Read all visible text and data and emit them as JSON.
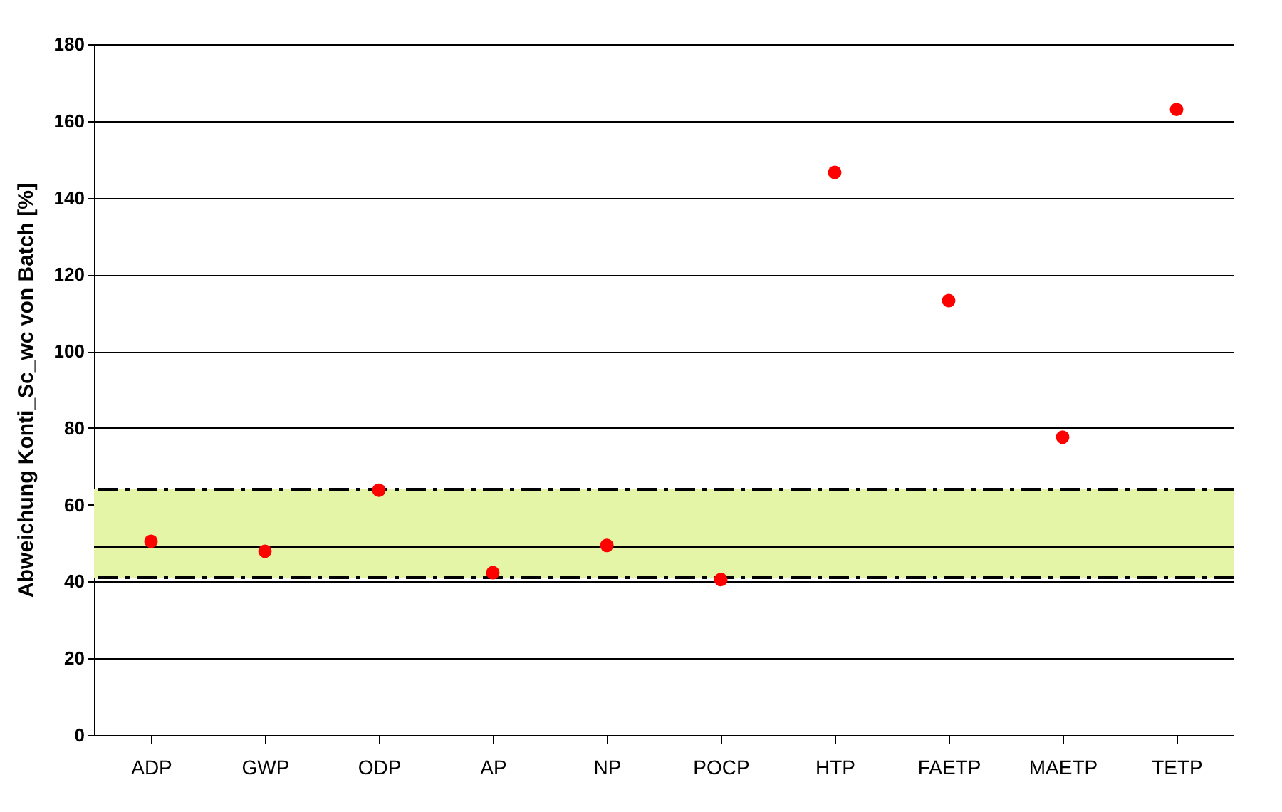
{
  "chart_data": {
    "type": "scatter",
    "ylabel": "Abweichung Konti_Sc_wc von Batch [%]",
    "categories": [
      "ADP",
      "GWP",
      "ODP",
      "AP",
      "NP",
      "POCP",
      "HTP",
      "FAETP",
      "MAETP",
      "TETP"
    ],
    "values": [
      50.5,
      47.9,
      63.8,
      42.3,
      49.4,
      40.5,
      146.6,
      113.2,
      77.6,
      163
    ],
    "color": "#ff0000",
    "marker": "circle",
    "ylim": [
      0,
      180
    ],
    "yticks": [
      0,
      20,
      40,
      60,
      80,
      100,
      120,
      140,
      160,
      180
    ],
    "grid": "y",
    "ref_lines": [
      {
        "axis": "y",
        "value": 49,
        "color": "#000000",
        "line_style": "solid"
      },
      {
        "axis": "y",
        "value": 64,
        "color": "#000000",
        "line_style": "dashed"
      },
      {
        "axis": "y",
        "value": 41,
        "color": "#000000",
        "line_style": "dashed"
      }
    ],
    "bands": [
      {
        "axis": "y",
        "from": 41,
        "to": 64,
        "color": "#e4f5a8"
      }
    ]
  }
}
